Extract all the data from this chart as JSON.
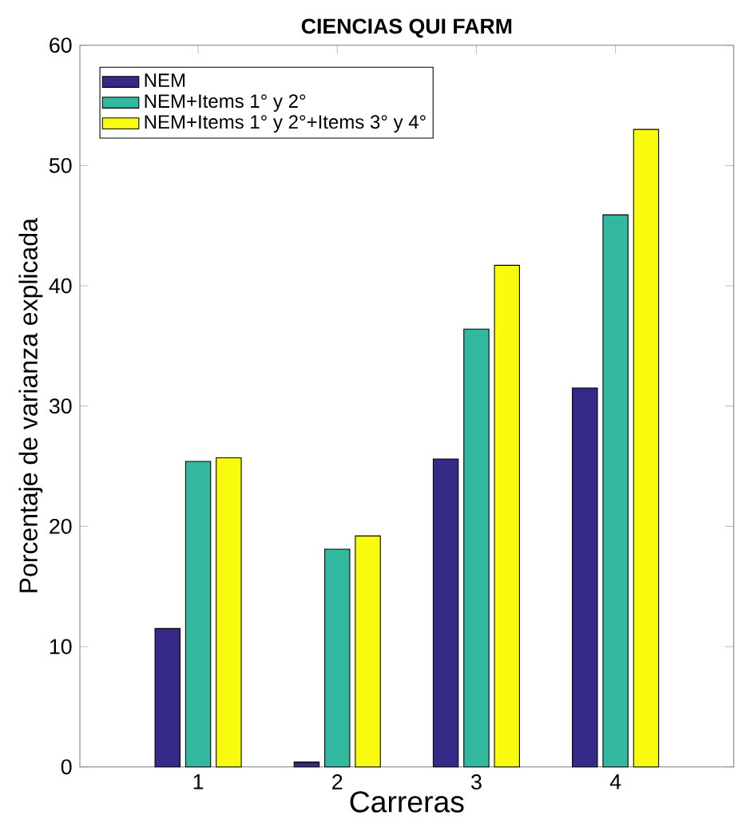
{
  "chart_data": {
    "type": "bar",
    "title": "CIENCIAS QUI FARM",
    "xlabel": "Carreras",
    "ylabel": "Porcentaje de varianza explicada",
    "categories": [
      "1",
      "2",
      "3",
      "4"
    ],
    "series": [
      {
        "name": "NEM",
        "color": "#352a87",
        "values": [
          11.5,
          0.4,
          25.6,
          31.5
        ]
      },
      {
        "name": "NEM+Items 1° y 2°",
        "color": "#33b8a0",
        "values": [
          25.4,
          18.1,
          36.4,
          45.9
        ]
      },
      {
        "name": "NEM+Items 1° y 2°+Items 3° y 4°",
        "color": "#f9fb0e",
        "values": [
          25.7,
          19.2,
          41.7,
          53
        ]
      }
    ],
    "ylim": [
      0,
      60
    ],
    "yticks": [
      0,
      10,
      20,
      30,
      40,
      50,
      60
    ],
    "legend": "top left",
    "grid": false
  }
}
